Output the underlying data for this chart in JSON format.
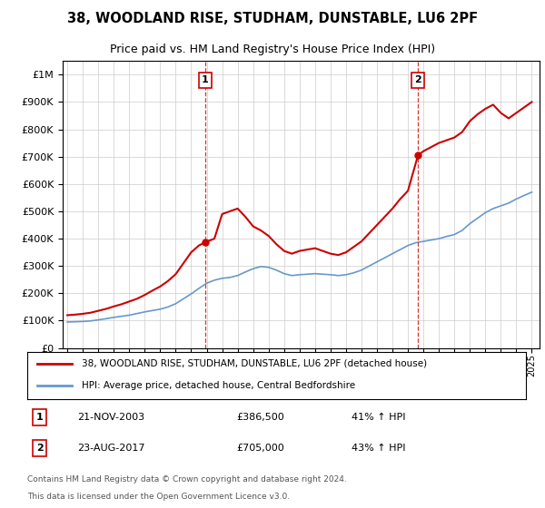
{
  "title": "38, WOODLAND RISE, STUDHAM, DUNSTABLE, LU6 2PF",
  "subtitle": "Price paid vs. HM Land Registry's House Price Index (HPI)",
  "legend_line1": "38, WOODLAND RISE, STUDHAM, DUNSTABLE, LU6 2PF (detached house)",
  "legend_line2": "HPI: Average price, detached house, Central Bedfordshire",
  "footnote1": "Contains HM Land Registry data © Crown copyright and database right 2024.",
  "footnote2": "This data is licensed under the Open Government Licence v3.0.",
  "sale1_label": "1",
  "sale1_date": "21-NOV-2003",
  "sale1_price": "£386,500",
  "sale1_hpi": "41% ↑ HPI",
  "sale2_label": "2",
  "sale2_date": "23-AUG-2017",
  "sale2_price": "£705,000",
  "sale2_hpi": "43% ↑ HPI",
  "ylim": [
    0,
    1050000
  ],
  "xlim_start": 1994.7,
  "xlim_end": 2025.5,
  "sale1_x": 2003.9,
  "sale1_y": 386500,
  "sale2_x": 2017.65,
  "sale2_y": 705000,
  "red_color": "#cc0000",
  "blue_color": "#6699cc",
  "bg_color": "#ffffff",
  "grid_color": "#cccccc",
  "years_hpi": [
    1995.0,
    1995.5,
    1996.0,
    1996.5,
    1997.0,
    1997.5,
    1998.0,
    1998.5,
    1999.0,
    1999.5,
    2000.0,
    2000.5,
    2001.0,
    2001.5,
    2002.0,
    2002.5,
    2003.0,
    2003.5,
    2004.0,
    2004.5,
    2005.0,
    2005.5,
    2006.0,
    2006.5,
    2007.0,
    2007.5,
    2008.0,
    2008.5,
    2009.0,
    2009.5,
    2010.0,
    2010.5,
    2011.0,
    2011.5,
    2012.0,
    2012.5,
    2013.0,
    2013.5,
    2014.0,
    2014.5,
    2015.0,
    2015.5,
    2016.0,
    2016.5,
    2017.0,
    2017.5,
    2018.0,
    2018.5,
    2019.0,
    2019.5,
    2020.0,
    2020.5,
    2021.0,
    2021.5,
    2022.0,
    2022.5,
    2023.0,
    2023.5,
    2024.0,
    2024.5,
    2025.0
  ],
  "hpi_values": [
    95000,
    96000,
    97000,
    99000,
    103000,
    107000,
    112000,
    116000,
    120000,
    126000,
    132000,
    137000,
    142000,
    150000,
    162000,
    180000,
    198000,
    218000,
    237000,
    248000,
    255000,
    258000,
    265000,
    278000,
    290000,
    298000,
    295000,
    285000,
    272000,
    265000,
    268000,
    270000,
    272000,
    270000,
    268000,
    265000,
    268000,
    275000,
    285000,
    300000,
    315000,
    330000,
    345000,
    360000,
    375000,
    385000,
    390000,
    395000,
    400000,
    408000,
    415000,
    430000,
    455000,
    475000,
    495000,
    510000,
    520000,
    530000,
    545000,
    558000,
    570000
  ],
  "years_red": [
    1995.0,
    1995.5,
    1996.0,
    1996.5,
    1997.0,
    1997.5,
    1998.0,
    1998.5,
    1999.0,
    1999.5,
    2000.0,
    2000.5,
    2001.0,
    2001.5,
    2002.0,
    2002.5,
    2003.0,
    2003.5,
    2003.9,
    2004.5,
    2005.0,
    2005.5,
    2006.0,
    2006.5,
    2007.0,
    2007.5,
    2008.0,
    2008.5,
    2009.0,
    2009.5,
    2010.0,
    2010.5,
    2011.0,
    2011.5,
    2012.0,
    2012.5,
    2013.0,
    2013.5,
    2014.0,
    2014.5,
    2015.0,
    2015.5,
    2016.0,
    2016.5,
    2017.0,
    2017.65,
    2018.0,
    2018.5,
    2019.0,
    2019.5,
    2020.0,
    2020.5,
    2021.0,
    2021.5,
    2022.0,
    2022.5,
    2023.0,
    2023.5,
    2024.0,
    2024.5,
    2025.0
  ],
  "red_values": [
    120000,
    122000,
    125000,
    129000,
    136000,
    143000,
    152000,
    160000,
    170000,
    180000,
    194000,
    210000,
    225000,
    245000,
    270000,
    310000,
    350000,
    375000,
    386500,
    400000,
    490000,
    500000,
    510000,
    480000,
    445000,
    430000,
    410000,
    380000,
    355000,
    345000,
    355000,
    360000,
    365000,
    355000,
    345000,
    340000,
    350000,
    370000,
    390000,
    420000,
    450000,
    480000,
    510000,
    545000,
    575000,
    705000,
    720000,
    735000,
    750000,
    760000,
    770000,
    790000,
    830000,
    855000,
    875000,
    890000,
    860000,
    840000,
    860000,
    880000,
    900000
  ]
}
